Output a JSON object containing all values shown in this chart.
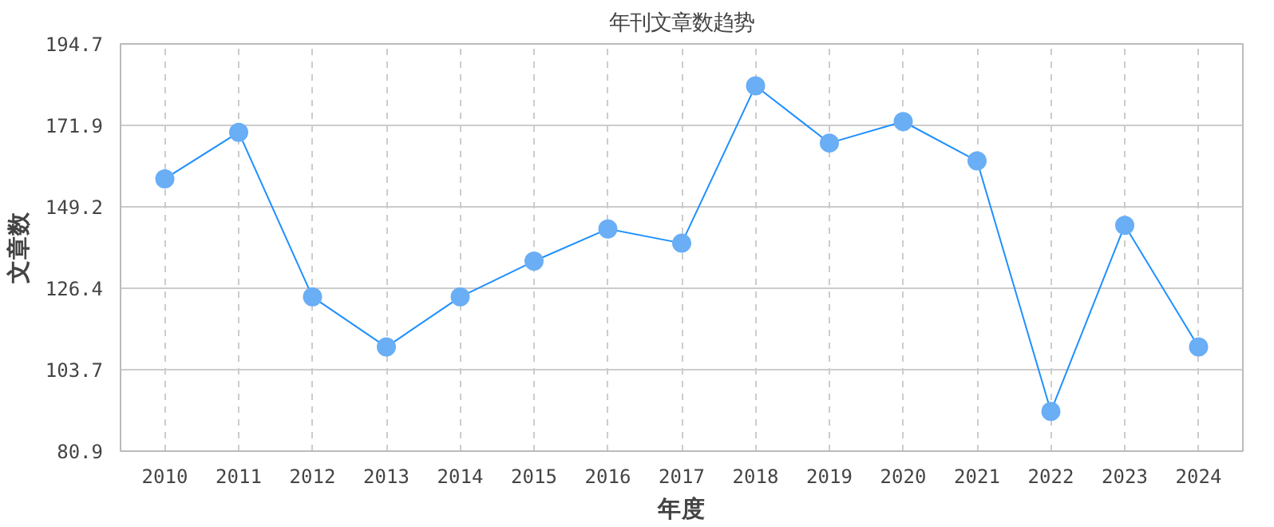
{
  "chart_data": {
    "type": "line",
    "title": "年刊文章数趋势",
    "xlabel": "年度",
    "ylabel": "文章数",
    "categories": [
      "2010",
      "2011",
      "2012",
      "2013",
      "2014",
      "2015",
      "2016",
      "2017",
      "2018",
      "2019",
      "2020",
      "2021",
      "2022",
      "2023",
      "2024"
    ],
    "series": [
      {
        "color": "#1e90ff",
        "values": [
          157,
          170,
          124,
          110,
          124,
          134,
          143,
          139,
          183,
          167,
          173,
          162,
          92,
          144,
          110
        ]
      }
    ],
    "ylim": [
      80.9,
      194.7
    ],
    "yticks": [
      80.9,
      103.7,
      126.4,
      149.2,
      171.9,
      194.7
    ],
    "grid": true,
    "marker": "circle",
    "line_style": "solid"
  }
}
